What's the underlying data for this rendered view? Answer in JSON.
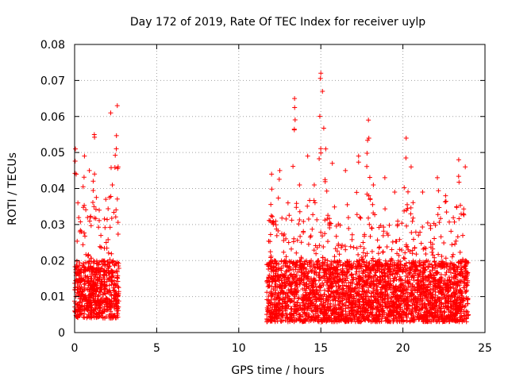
{
  "chart_data": {
    "type": "scatter",
    "title": "Day 172 of 2019, Rate Of TEC Index for receiver uylp",
    "xlabel": "GPS time / hours",
    "ylabel": "ROTI / TECUs",
    "xlim": [
      0,
      25
    ],
    "ylim": [
      0,
      0.08
    ],
    "x_ticks": [
      0,
      5,
      10,
      15,
      20,
      25
    ],
    "x_tick_labels": [
      "0",
      "5",
      "10",
      "15",
      "20",
      "25"
    ],
    "y_ticks": [
      0,
      0.01,
      0.02,
      0.03,
      0.04,
      0.05,
      0.06,
      0.07,
      0.08
    ],
    "y_tick_labels": [
      "0",
      "0.01",
      "0.02",
      "0.03",
      "0.04",
      "0.05",
      "0.06",
      "0.07",
      "0.08"
    ],
    "grid": true,
    "marker": "+",
    "color": "#ff0000",
    "series": [
      {
        "name": "ROTI",
        "segments": [
          {
            "x_start": 0.0,
            "x_end": 2.7,
            "base_min": 0.004,
            "base_max": 0.02
          },
          {
            "x_start": 11.7,
            "x_end": 24.0,
            "base_min": 0.003,
            "base_max": 0.02
          }
        ],
        "peaks": [
          {
            "x": 0.05,
            "y": 0.051
          },
          {
            "x": 0.1,
            "y": 0.044
          },
          {
            "x": 0.2,
            "y": 0.036
          },
          {
            "x": 0.6,
            "y": 0.049
          },
          {
            "x": 0.9,
            "y": 0.045
          },
          {
            "x": 1.2,
            "y": 0.055
          },
          {
            "x": 1.5,
            "y": 0.034
          },
          {
            "x": 1.9,
            "y": 0.037
          },
          {
            "x": 2.2,
            "y": 0.061
          },
          {
            "x": 2.3,
            "y": 0.041
          },
          {
            "x": 2.6,
            "y": 0.063
          },
          {
            "x": 2.65,
            "y": 0.046
          },
          {
            "x": 12.0,
            "y": 0.044
          },
          {
            "x": 12.5,
            "y": 0.045
          },
          {
            "x": 13.0,
            "y": 0.036
          },
          {
            "x": 13.4,
            "y": 0.065
          },
          {
            "x": 13.7,
            "y": 0.041
          },
          {
            "x": 14.2,
            "y": 0.049
          },
          {
            "x": 14.6,
            "y": 0.041
          },
          {
            "x": 15.0,
            "y": 0.072
          },
          {
            "x": 15.1,
            "y": 0.067
          },
          {
            "x": 15.3,
            "y": 0.051
          },
          {
            "x": 15.7,
            "y": 0.047
          },
          {
            "x": 16.5,
            "y": 0.045
          },
          {
            "x": 17.3,
            "y": 0.049
          },
          {
            "x": 17.9,
            "y": 0.059
          },
          {
            "x": 18.2,
            "y": 0.041
          },
          {
            "x": 18.9,
            "y": 0.043
          },
          {
            "x": 19.5,
            "y": 0.039
          },
          {
            "x": 20.2,
            "y": 0.054
          },
          {
            "x": 20.5,
            "y": 0.046
          },
          {
            "x": 21.2,
            "y": 0.039
          },
          {
            "x": 22.1,
            "y": 0.043
          },
          {
            "x": 22.6,
            "y": 0.038
          },
          {
            "x": 23.4,
            "y": 0.048
          },
          {
            "x": 23.8,
            "y": 0.046
          }
        ]
      }
    ]
  }
}
